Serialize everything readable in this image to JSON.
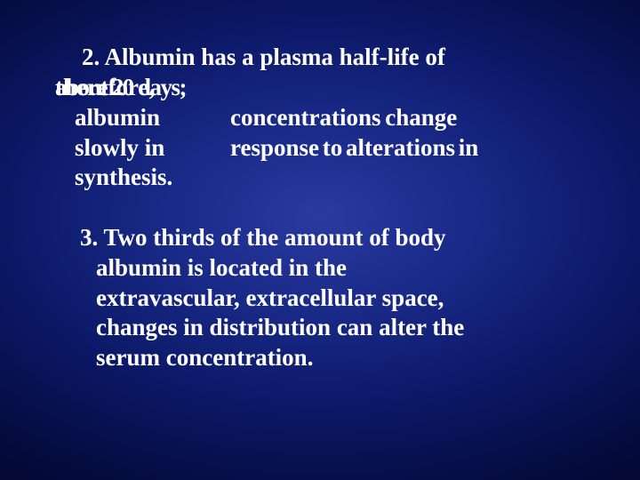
{
  "point2": {
    "line1": "2. Albumin  has  a  plasma  half-life  of",
    "overlap_below": "therefore,",
    "overlap_above": "about 20 days;",
    "rowA_c1": "albumin",
    "rowA_c2": "concentrations change",
    "rowB_c1": "slowly in",
    "rowB_c2": "response to alterations in",
    "last": "synthesis."
  },
  "point3": {
    "line1": "3. Two  thirds  of  the  amount  of  body",
    "line2": "albumin is located in the",
    "line3": "extravascular, extracellular space,",
    "line4": "changes in distribution can alter the",
    "line5": "serum concentration."
  },
  "colors": {
    "text": "#ffffff"
  }
}
